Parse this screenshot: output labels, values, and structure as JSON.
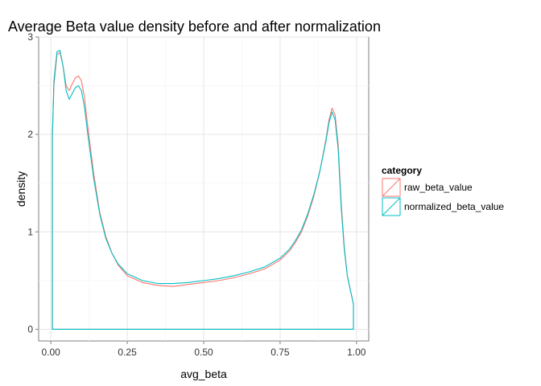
{
  "chart_data": {
    "type": "line",
    "title": "Average Beta value density before and after normalization",
    "xlabel": "avg_beta",
    "ylabel": "density",
    "xlim": [
      -0.04,
      1.04
    ],
    "ylim": [
      -0.12,
      3.0
    ],
    "x_ticks": [
      0.0,
      0.25,
      0.5,
      0.75,
      1.0
    ],
    "x_tick_labels": [
      "0.00",
      "0.25",
      "0.50",
      "0.75",
      "1.00"
    ],
    "y_ticks": [
      0,
      1,
      2,
      3
    ],
    "y_tick_labels": [
      "0",
      "1",
      "2",
      "3"
    ],
    "grid": true,
    "legend": {
      "title": "category",
      "placement": "right",
      "entries": [
        "raw_beta_value",
        "normalized_beta_value"
      ]
    },
    "x_range": [
      0.005,
      0.99
    ],
    "series": [
      {
        "name": "raw_beta_value",
        "color": "#F8766D",
        "x": [
          0.005,
          0.01,
          0.02,
          0.03,
          0.04,
          0.05,
          0.06,
          0.07,
          0.08,
          0.09,
          0.1,
          0.11,
          0.12,
          0.14,
          0.16,
          0.18,
          0.2,
          0.22,
          0.25,
          0.3,
          0.35,
          0.4,
          0.45,
          0.5,
          0.55,
          0.6,
          0.65,
          0.7,
          0.75,
          0.78,
          0.8,
          0.82,
          0.84,
          0.86,
          0.88,
          0.9,
          0.91,
          0.92,
          0.93,
          0.94,
          0.95,
          0.96,
          0.97,
          0.98,
          0.99
        ],
        "y": [
          1.98,
          2.5,
          2.82,
          2.84,
          2.7,
          2.5,
          2.45,
          2.52,
          2.58,
          2.6,
          2.55,
          2.38,
          2.1,
          1.6,
          1.2,
          0.95,
          0.78,
          0.66,
          0.55,
          0.48,
          0.45,
          0.44,
          0.46,
          0.48,
          0.5,
          0.53,
          0.57,
          0.62,
          0.71,
          0.8,
          0.89,
          1.0,
          1.16,
          1.36,
          1.62,
          1.95,
          2.15,
          2.27,
          2.2,
          1.9,
          1.3,
          0.85,
          0.55,
          0.4,
          0.26
        ]
      },
      {
        "name": "normalized_beta_value",
        "color": "#00BFC4",
        "x": [
          0.005,
          0.01,
          0.02,
          0.03,
          0.04,
          0.05,
          0.06,
          0.07,
          0.08,
          0.09,
          0.1,
          0.11,
          0.12,
          0.14,
          0.16,
          0.18,
          0.2,
          0.22,
          0.25,
          0.3,
          0.35,
          0.4,
          0.45,
          0.5,
          0.55,
          0.6,
          0.65,
          0.7,
          0.75,
          0.78,
          0.8,
          0.82,
          0.84,
          0.86,
          0.88,
          0.9,
          0.91,
          0.92,
          0.93,
          0.94,
          0.95,
          0.96,
          0.97,
          0.98,
          0.99
        ],
        "y": [
          1.98,
          2.55,
          2.85,
          2.86,
          2.7,
          2.45,
          2.36,
          2.42,
          2.48,
          2.5,
          2.45,
          2.28,
          2.02,
          1.55,
          1.18,
          0.93,
          0.78,
          0.67,
          0.57,
          0.5,
          0.47,
          0.47,
          0.48,
          0.5,
          0.52,
          0.55,
          0.59,
          0.64,
          0.73,
          0.82,
          0.91,
          1.02,
          1.18,
          1.38,
          1.62,
          1.93,
          2.12,
          2.23,
          2.15,
          1.85,
          1.25,
          0.82,
          0.55,
          0.4,
          0.26
        ]
      }
    ]
  }
}
